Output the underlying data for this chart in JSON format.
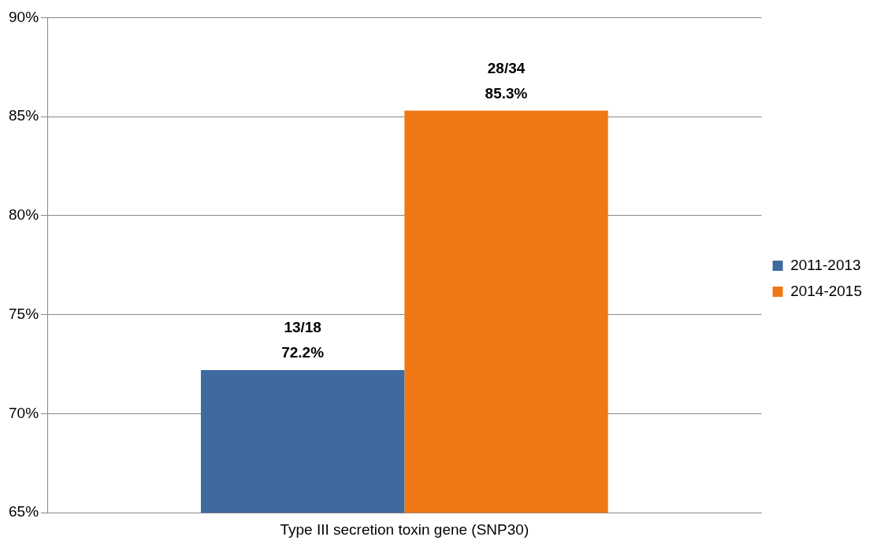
{
  "chart_data": {
    "type": "bar",
    "categories": [
      "Type III secretion toxin gene (SNP30)"
    ],
    "series": [
      {
        "name": "2011-2013",
        "color": "#3e6a9e",
        "values": [
          72.2
        ],
        "value_labels": [
          "13/18\n72.2%"
        ]
      },
      {
        "name": "2014-2015",
        "color": "#f07814",
        "values": [
          85.3
        ],
        "value_labels": [
          "28/34\n85.3%"
        ]
      }
    ],
    "ylim": [
      65,
      90
    ],
    "yticks": [
      {
        "value": 65,
        "label": "65%"
      },
      {
        "value": 70,
        "label": "70%"
      },
      {
        "value": 75,
        "label": "75%"
      },
      {
        "value": 80,
        "label": "80%"
      },
      {
        "value": 85,
        "label": "85%"
      },
      {
        "value": 90,
        "label": "90%"
      }
    ],
    "grid": "y",
    "legend": "right"
  }
}
